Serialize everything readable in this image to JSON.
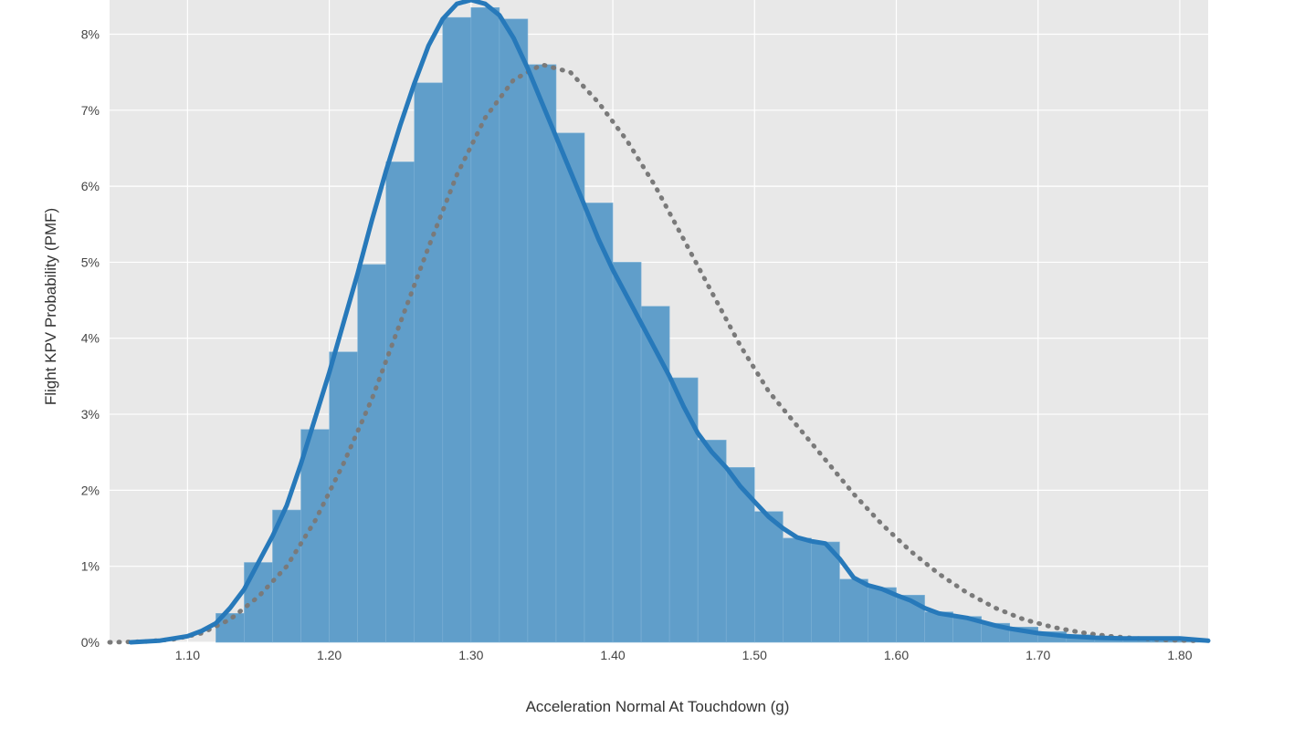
{
  "chart_data": {
    "type": "bar",
    "title": "",
    "xlabel": "Acceleration Normal At Touchdown (g)",
    "ylabel": "Flight KPV Probability (PMF)",
    "xlim": [
      1.045,
      1.82
    ],
    "ylim": [
      0,
      8.45
    ],
    "x_tick_values": [
      1.1,
      1.2,
      1.3,
      1.4,
      1.5,
      1.6,
      1.7,
      1.8
    ],
    "x_tick_labels": [
      "1.10",
      "1.20",
      "1.30",
      "1.40",
      "1.50",
      "1.60",
      "1.70",
      "1.80"
    ],
    "y_tick_values": [
      0,
      1,
      2,
      3,
      4,
      5,
      6,
      7,
      8
    ],
    "y_tick_labels": [
      "0%",
      "1%",
      "2%",
      "3%",
      "4%",
      "5%",
      "6%",
      "7%",
      "8%"
    ],
    "grid": true,
    "legend": "none",
    "colors": {
      "background": "#e8e8e8",
      "grid": "#ffffff",
      "bars": "#5b9bc8",
      "kde_line": "#2779ba",
      "reference_curve": "#7a7a7a"
    },
    "bins": {
      "x_start": [
        1.12,
        1.14,
        1.16,
        1.18,
        1.2,
        1.22,
        1.24,
        1.26,
        1.28,
        1.3,
        1.32,
        1.34,
        1.36,
        1.38,
        1.4,
        1.42,
        1.44,
        1.46,
        1.48,
        1.5,
        1.52,
        1.54,
        1.56,
        1.58,
        1.6,
        1.62,
        1.64,
        1.66,
        1.68,
        1.7,
        1.72,
        1.74,
        1.76,
        1.78,
        1.8
      ],
      "width": 0.02,
      "values": [
        0.38,
        1.05,
        1.74,
        2.8,
        3.82,
        4.97,
        6.32,
        7.36,
        8.22,
        8.35,
        8.2,
        7.6,
        6.7,
        5.78,
        5.0,
        4.42,
        3.48,
        2.66,
        2.3,
        1.72,
        1.37,
        1.32,
        0.83,
        0.72,
        0.62,
        0.4,
        0.34,
        0.25,
        0.2,
        0.14,
        0.1,
        0.07,
        0.05,
        0.04,
        0.03
      ]
    },
    "series": [
      {
        "kind": "kde-line",
        "x": [
          1.06,
          1.08,
          1.1,
          1.11,
          1.12,
          1.13,
          1.14,
          1.15,
          1.16,
          1.17,
          1.18,
          1.19,
          1.2,
          1.21,
          1.22,
          1.23,
          1.24,
          1.25,
          1.26,
          1.27,
          1.28,
          1.29,
          1.3,
          1.31,
          1.32,
          1.33,
          1.34,
          1.35,
          1.36,
          1.37,
          1.38,
          1.39,
          1.4,
          1.41,
          1.42,
          1.43,
          1.44,
          1.45,
          1.46,
          1.47,
          1.48,
          1.49,
          1.5,
          1.51,
          1.52,
          1.53,
          1.54,
          1.55,
          1.56,
          1.57,
          1.58,
          1.59,
          1.6,
          1.61,
          1.62,
          1.63,
          1.64,
          1.65,
          1.66,
          1.67,
          1.68,
          1.7,
          1.72,
          1.74,
          1.76,
          1.78,
          1.8,
          1.82
        ],
        "y": [
          0.0,
          0.02,
          0.08,
          0.15,
          0.25,
          0.45,
          0.7,
          1.05,
          1.4,
          1.8,
          2.35,
          2.95,
          3.55,
          4.2,
          4.85,
          5.55,
          6.2,
          6.8,
          7.35,
          7.85,
          8.2,
          8.4,
          8.45,
          8.4,
          8.25,
          7.95,
          7.55,
          7.1,
          6.65,
          6.2,
          5.75,
          5.3,
          4.9,
          4.55,
          4.2,
          3.85,
          3.5,
          3.1,
          2.75,
          2.5,
          2.3,
          2.05,
          1.85,
          1.65,
          1.5,
          1.38,
          1.33,
          1.3,
          1.1,
          0.85,
          0.75,
          0.7,
          0.62,
          0.55,
          0.45,
          0.38,
          0.35,
          0.32,
          0.27,
          0.22,
          0.18,
          0.12,
          0.08,
          0.06,
          0.05,
          0.05,
          0.05,
          0.02
        ]
      },
      {
        "kind": "dotted-reference",
        "x": [
          1.045,
          1.07,
          1.09,
          1.11,
          1.13,
          1.15,
          1.17,
          1.19,
          1.21,
          1.23,
          1.25,
          1.27,
          1.29,
          1.31,
          1.33,
          1.35,
          1.37,
          1.39,
          1.41,
          1.43,
          1.45,
          1.47,
          1.49,
          1.51,
          1.53,
          1.55,
          1.57,
          1.59,
          1.61,
          1.63,
          1.65,
          1.67,
          1.69,
          1.71,
          1.73,
          1.75,
          1.77,
          1.79,
          1.81
        ],
        "y": [
          0.0,
          0.01,
          0.04,
          0.12,
          0.3,
          0.6,
          1.0,
          1.6,
          2.35,
          3.2,
          4.2,
          5.2,
          6.15,
          6.9,
          7.4,
          7.6,
          7.5,
          7.1,
          6.6,
          6.0,
          5.3,
          4.6,
          3.9,
          3.3,
          2.85,
          2.4,
          1.95,
          1.55,
          1.2,
          0.9,
          0.65,
          0.45,
          0.3,
          0.2,
          0.13,
          0.08,
          0.05,
          0.03,
          0.02
        ]
      }
    ]
  }
}
